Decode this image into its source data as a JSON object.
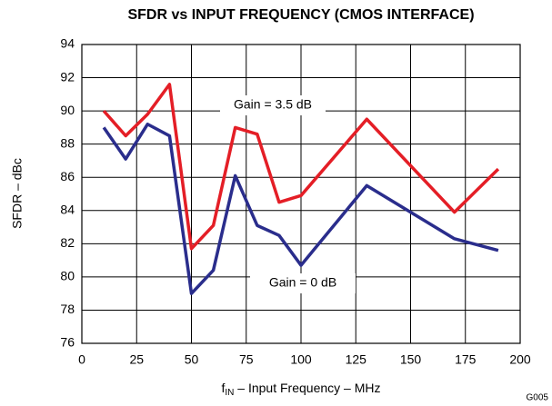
{
  "chart_data": {
    "type": "line",
    "title": "SFDR vs INPUT FREQUENCY (CMOS INTERFACE)",
    "xlabel": {
      "main": "f",
      "sub": "IN",
      "rest": " – Input Frequency – MHz"
    },
    "ylabel": "SFDR – dBc",
    "footer": "G005",
    "x": [
      10,
      20,
      30,
      40,
      50,
      60,
      70,
      80,
      90,
      100,
      130,
      170,
      190
    ],
    "series": [
      {
        "name": "Gain = 3.5 dB",
        "color": "#e41e26",
        "values": [
          90.0,
          88.5,
          89.8,
          91.6,
          81.7,
          83.1,
          89.0,
          88.6,
          84.5,
          84.9,
          89.5,
          83.9,
          86.5
        ]
      },
      {
        "name": "Gain = 0 dB",
        "color": "#2a2d8c",
        "values": [
          89.0,
          87.1,
          89.2,
          88.5,
          79.0,
          80.4,
          86.1,
          83.1,
          82.5,
          80.7,
          85.5,
          82.3,
          81.6
        ]
      }
    ],
    "xlim": [
      0,
      200
    ],
    "xticks": [
      0,
      25,
      50,
      75,
      100,
      125,
      150,
      175,
      200
    ],
    "ylim": [
      76,
      94
    ],
    "yticks": [
      76,
      78,
      80,
      82,
      84,
      86,
      88,
      90,
      92,
      94
    ],
    "grid": true
  }
}
